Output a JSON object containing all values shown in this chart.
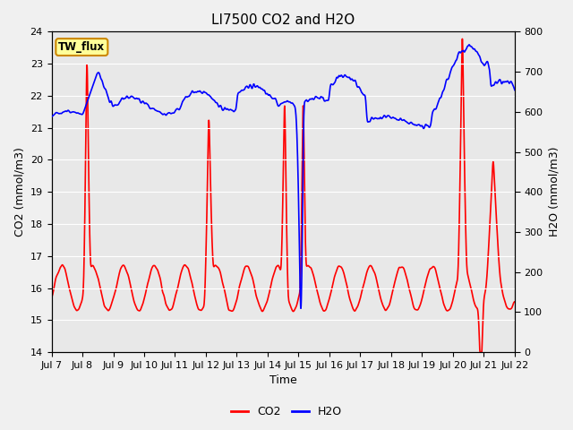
{
  "title": "LI7500 CO2 and H2O",
  "xlabel": "Time",
  "ylabel_left": "CO2 (mmol/m3)",
  "ylabel_right": "H2O (mmol/m3)",
  "ylim_left": [
    14.0,
    24.0
  ],
  "ylim_right": [
    0,
    800
  ],
  "yticks_left": [
    14.0,
    15.0,
    16.0,
    17.0,
    18.0,
    19.0,
    20.0,
    21.0,
    22.0,
    23.0,
    24.0
  ],
  "yticks_right": [
    0,
    100,
    200,
    300,
    400,
    500,
    600,
    700,
    800
  ],
  "xtick_labels": [
    "Jul 7",
    "Jul 8",
    "Jul 9",
    "Jul 10",
    "Jul 11",
    "Jul 12",
    "Jul 13",
    "Jul 14",
    "Jul 15",
    "Jul 16",
    "Jul 17",
    "Jul 18",
    "Jul 19",
    "Jul 20",
    "Jul 21",
    "Jul 22"
  ],
  "co2_color": "#FF0000",
  "h2o_color": "#0000FF",
  "fig_bg_color": "#F0F0F0",
  "plot_bg_color": "#E8E8E8",
  "legend_label": "TW_flux",
  "legend_box_facecolor": "#FFFF99",
  "legend_box_edgecolor": "#CC8800",
  "linewidth_co2": 1.2,
  "linewidth_h2o": 1.2,
  "title_fontsize": 11,
  "axis_label_fontsize": 9,
  "tick_fontsize": 8,
  "legend_fontsize": 9
}
